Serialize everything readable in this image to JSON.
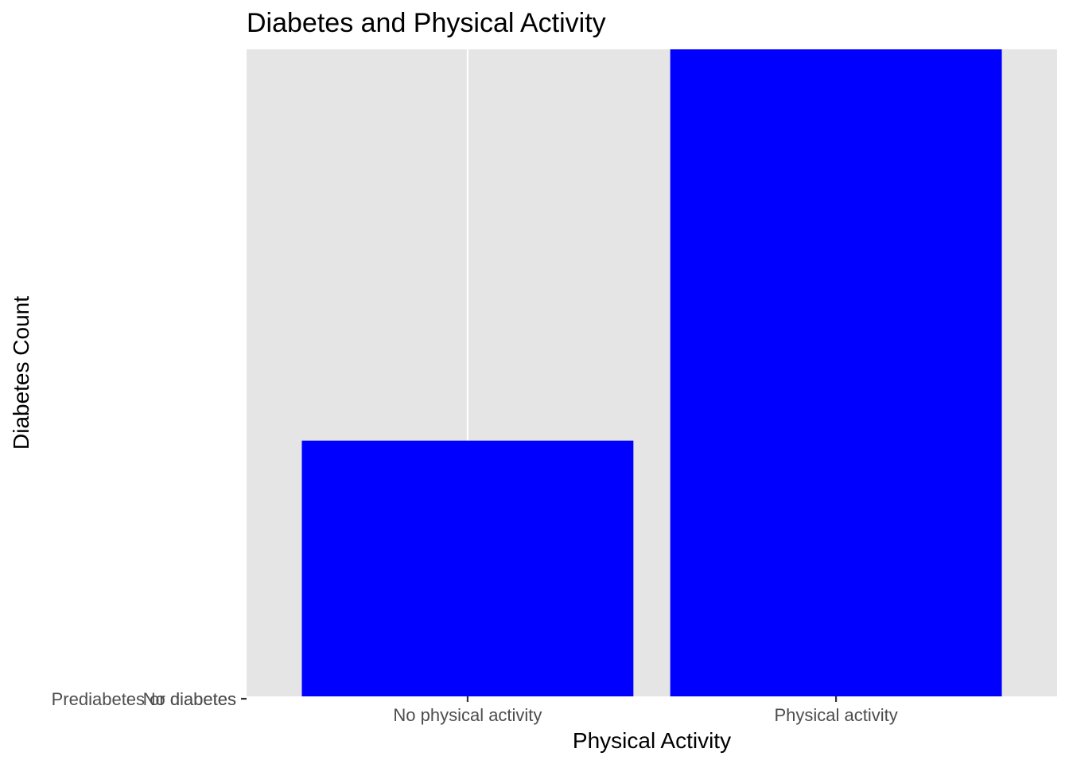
{
  "chart_data": {
    "type": "bar",
    "title": "Diabetes and Physical Activity",
    "xlabel": "Physical Activity",
    "ylabel": "Diabetes Count",
    "categories": [
      "No physical activity",
      "Physical activity"
    ],
    "values": [
      1,
      2.53
    ],
    "y_tick_labels": [
      "Prediabetes or diabetes",
      "No diabetes"
    ],
    "ylim": [
      0,
      2.53
    ],
    "grid": true,
    "legend": "none",
    "colors": {
      "bar": "#0000FF",
      "panel": "#E5E5E5",
      "grid": "#FFFFFF",
      "axis_text": "#4D4D4D",
      "title_text": "#000000"
    }
  }
}
